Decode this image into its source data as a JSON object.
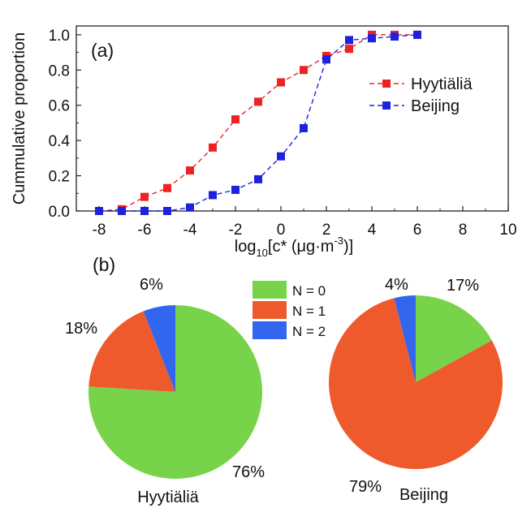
{
  "chart_data": [
    {
      "type": "line",
      "panel_label": "(a)",
      "xlabel_base": "log",
      "xlabel_sub": "10",
      "xlabel_body": "[c* (μg·m",
      "xlabel_sup": "-3",
      "xlabel_end": ")]",
      "ylabel": "Cummulative proportion",
      "xlim": [
        -9,
        10
      ],
      "ylim": [
        0,
        1.05
      ],
      "xticks": [
        "-8",
        "-6",
        "-4",
        "-2",
        "0",
        "2",
        "4",
        "6",
        "8",
        "10"
      ],
      "xtick_values": [
        -8,
        -6,
        -4,
        -2,
        0,
        2,
        4,
        6,
        8,
        10
      ],
      "yticks": [
        "0.0",
        "0.2",
        "0.4",
        "0.6",
        "0.8",
        "1.0"
      ],
      "ytick_values": [
        0,
        0.2,
        0.4,
        0.6,
        0.8,
        1.0
      ],
      "legend_position": "right",
      "series": [
        {
          "name": "Hyytiäliä",
          "color": "#ee2222",
          "points": [
            [
              -8,
              0.0
            ],
            [
              -7,
              0.01
            ],
            [
              -6,
              0.08
            ],
            [
              -5,
              0.13
            ],
            [
              -4,
              0.23
            ],
            [
              -3,
              0.36
            ],
            [
              -2,
              0.52
            ],
            [
              -1,
              0.62
            ],
            [
              0,
              0.73
            ],
            [
              1,
              0.8
            ],
            [
              2,
              0.88
            ],
            [
              3,
              0.92
            ],
            [
              4,
              1.0
            ],
            [
              5,
              1.0
            ],
            [
              6,
              1.0
            ]
          ]
        },
        {
          "name": "Beijing",
          "color": "#1f22dd",
          "points": [
            [
              -8,
              0.0
            ],
            [
              -7,
              0.0
            ],
            [
              -6,
              0.0
            ],
            [
              -5,
              0.0
            ],
            [
              -4,
              0.02
            ],
            [
              -3,
              0.09
            ],
            [
              -2,
              0.12
            ],
            [
              -1,
              0.18
            ],
            [
              0,
              0.31
            ],
            [
              1,
              0.47
            ],
            [
              2,
              0.86
            ],
            [
              3,
              0.97
            ],
            [
              4,
              0.98
            ],
            [
              5,
              0.99
            ],
            [
              6,
              1.0
            ]
          ]
        }
      ]
    },
    {
      "type": "pie",
      "panel_label": "(b)",
      "label": "Hyytiäliä",
      "slices": [
        {
          "name": "N = 0",
          "value": 76,
          "label": "76%",
          "color": "#77d44a"
        },
        {
          "name": "N = 1",
          "value": 18,
          "label": "18%",
          "color": "#ef5a2c"
        },
        {
          "name": "N = 2",
          "value": 6,
          "label": "6%",
          "color": "#3366ee"
        }
      ]
    },
    {
      "type": "pie",
      "label": "Beijing",
      "slices": [
        {
          "name": "N = 0",
          "value": 17,
          "label": "17%",
          "color": "#77d44a"
        },
        {
          "name": "N = 1",
          "value": 79,
          "label": "79%",
          "color": "#ef5a2c"
        },
        {
          "name": "N = 2",
          "value": 4,
          "label": "4%",
          "color": "#3366ee"
        }
      ]
    }
  ],
  "pie_legend": [
    {
      "label": "N = 0",
      "color": "#77d44a"
    },
    {
      "label": "N = 1",
      "color": "#ef5a2c"
    },
    {
      "label": "N = 2",
      "color": "#3366ee"
    }
  ]
}
